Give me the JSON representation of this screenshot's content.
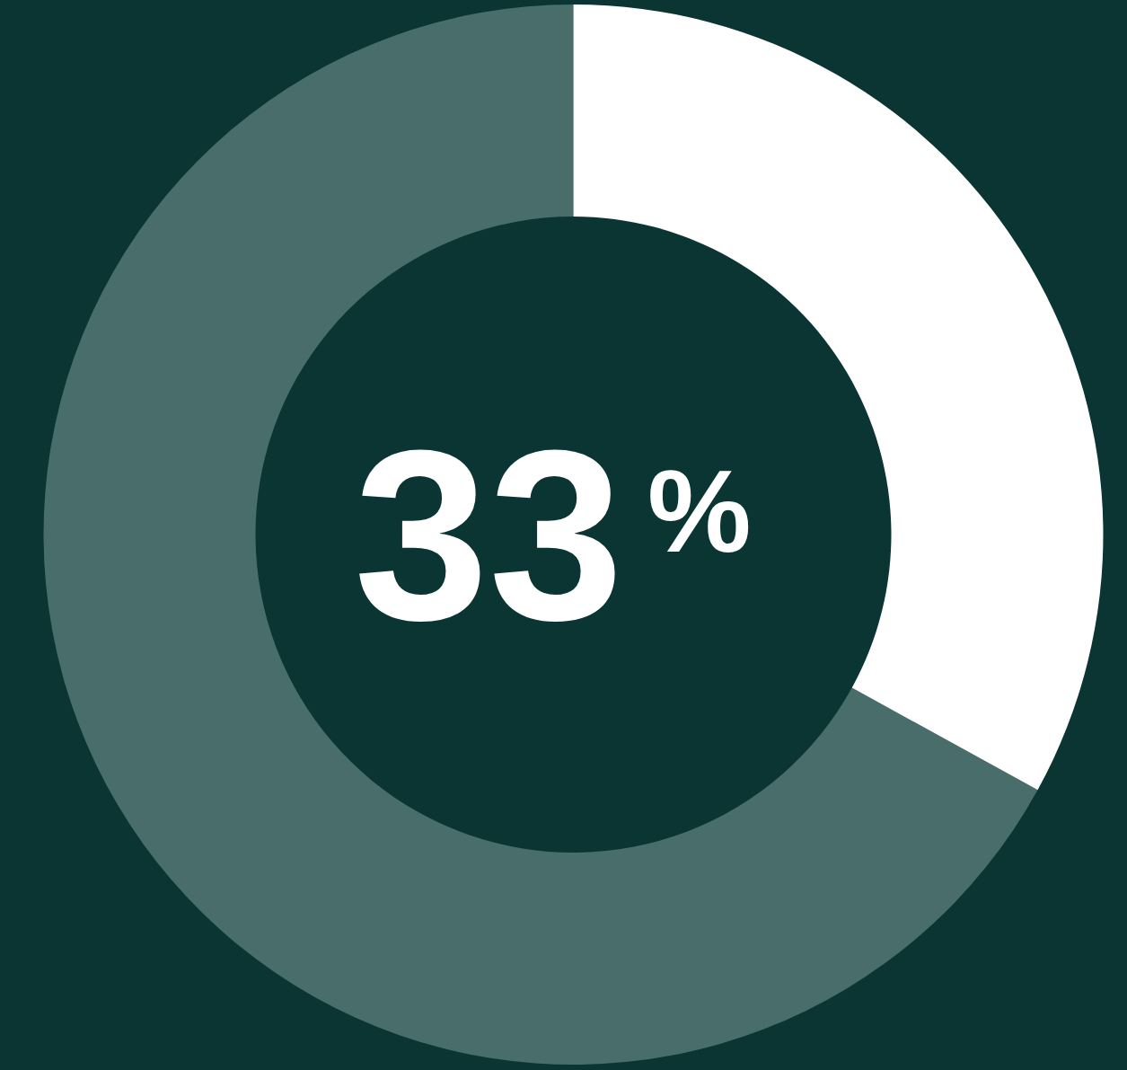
{
  "chart_data": {
    "type": "pie",
    "values": [
      33,
      67
    ],
    "colors": [
      "#ffffff",
      "rgba(190,215,210,0.35)"
    ],
    "annotations": [
      {
        "text": "33%"
      }
    ],
    "data_labels": false
  }
}
